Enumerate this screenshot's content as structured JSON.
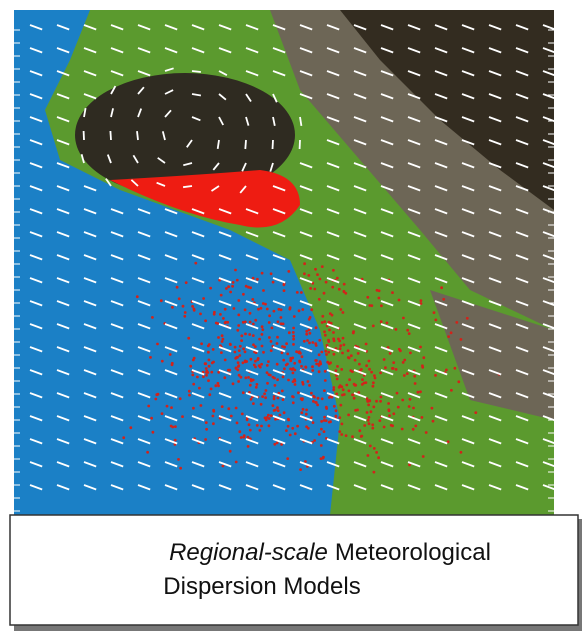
{
  "caption": {
    "emphasis": "Regional-scale",
    "rest": "Meteorological",
    "line2": "Dispersion Models"
  }
}
